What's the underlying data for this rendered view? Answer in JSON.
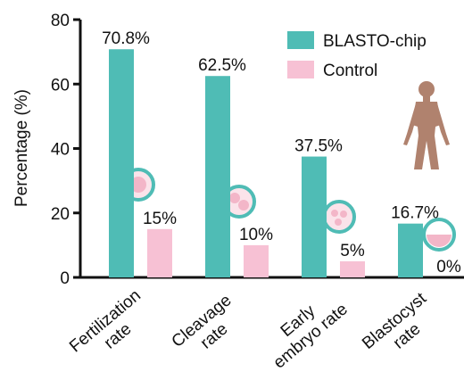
{
  "chart_data": {
    "type": "bar",
    "categories": [
      [
        "Fertilization",
        "rate"
      ],
      [
        "Cleavage",
        "rate"
      ],
      [
        "Early",
        "embryo rate"
      ],
      [
        "Blastocyst",
        "rate"
      ]
    ],
    "y_label": "Percentage (%)",
    "series": [
      {
        "name": "BLASTO-chip",
        "color": "#4fbcb5",
        "values": [
          70.8,
          62.5,
          37.5,
          16.7
        ],
        "value_labels": [
          "70.8%",
          "62.5%",
          "37.5%",
          "16.7%"
        ]
      },
      {
        "name": "Control",
        "color": "#f7c1d4",
        "values": [
          15,
          10,
          5,
          0
        ],
        "value_labels": [
          "15%",
          "10%",
          "5%",
          "0%"
        ]
      }
    ],
    "ylim": [
      0,
      80
    ],
    "yticks": [
      0,
      20,
      40,
      60,
      80
    ],
    "legend": "top-right"
  }
}
